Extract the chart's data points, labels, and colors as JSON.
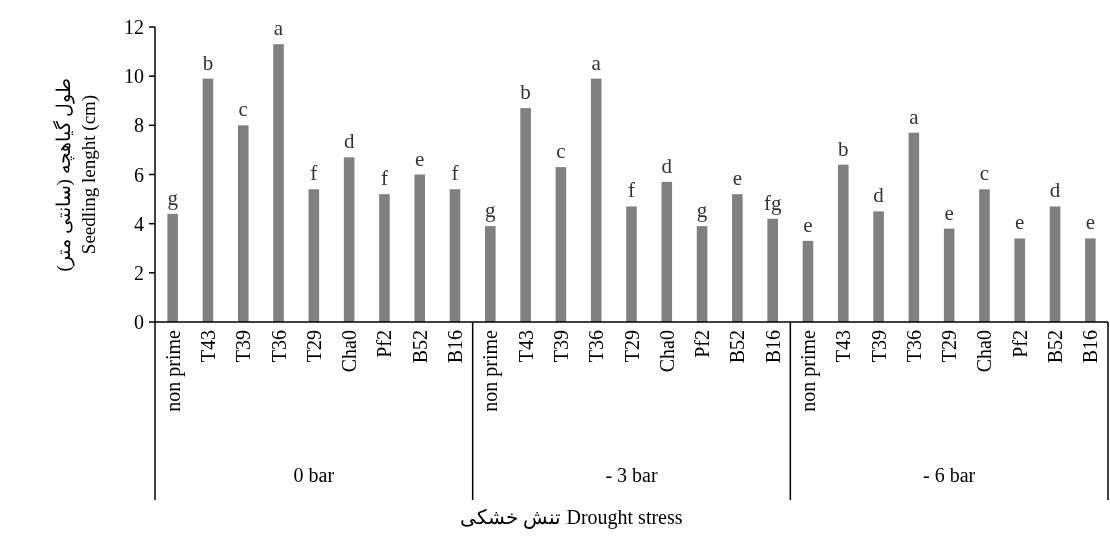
{
  "chart_data": {
    "type": "bar",
    "categories": [
      "non prime",
      "T43",
      "T39",
      "T36",
      "T29",
      "Cha0",
      "Pf2",
      "B52",
      "B16",
      "non prime",
      "T43",
      "T39",
      "T36",
      "T29",
      "Cha0",
      "Pf2",
      "B52",
      "B16",
      "non prime",
      "T43",
      "T39",
      "T36",
      "T29",
      "Cha0",
      "Pf2",
      "B52",
      "B16"
    ],
    "values": [
      4.4,
      9.9,
      8.0,
      11.3,
      5.4,
      6.7,
      5.2,
      6.0,
      5.4,
      3.9,
      8.7,
      6.3,
      9.9,
      4.7,
      5.7,
      3.9,
      5.2,
      4.2,
      3.3,
      6.4,
      4.5,
      7.7,
      3.8,
      5.4,
      3.4,
      4.7,
      3.4
    ],
    "value_labels": [
      "g",
      "b",
      "c",
      "a",
      "f",
      "d",
      "f",
      "e",
      "f",
      "g",
      "b",
      "c",
      "a",
      "f",
      "d",
      "g",
      "e",
      "fg",
      "e",
      "b",
      "d",
      "a",
      "e",
      "c",
      "e",
      "d",
      "e"
    ],
    "color": "#808080",
    "ylim": [
      0,
      12
    ],
    "yticks": [
      0,
      2,
      4,
      6,
      8,
      10,
      12
    ],
    "ylabel": "طول گیاهچه (سانتی متر)\nSeedling lenght (cm)",
    "xlabel": "تنش خشکی Drought stress",
    "annotations": [
      "0 bar",
      "- 3 bar",
      "- 6 bar"
    ],
    "grid": false
  }
}
